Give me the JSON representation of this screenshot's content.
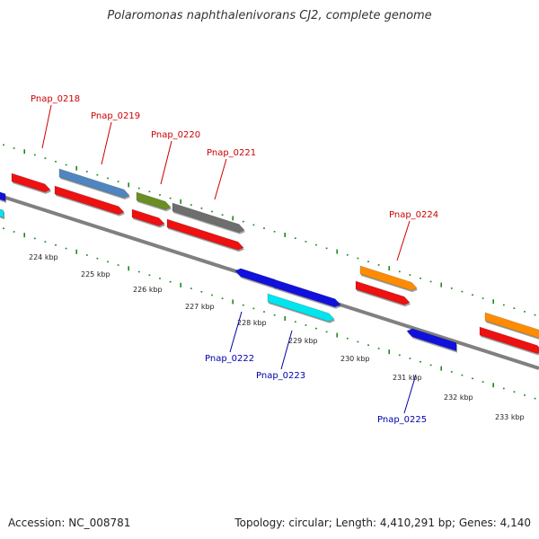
{
  "title": "Polaromonas naphthalenivorans CJ2, complete genome",
  "footer": {
    "accession": "Accession: NC_008781",
    "topology": "Topology: circular; Length: 4,410,291 bp; Genes: 4,140"
  },
  "colors": {
    "backbone": "#808080",
    "tick": "#1a8a1a",
    "forward_label": "#cc0000",
    "reverse_label": "#0000aa",
    "cds_red": "#ee1111",
    "steelblue": "#4f86c0",
    "olive": "#6b8e23",
    "gray": "#6e6e6e",
    "orange": "#ff8c00",
    "blue": "#1111dd",
    "cyan": "#00e5ee"
  },
  "kbp_labels": [
    "224 kbp",
    "225 kbp",
    "226 kbp",
    "227 kbp",
    "228 kbp",
    "229 kbp",
    "230 kbp",
    "231 kbp",
    "232 kbp",
    "233 kbp"
  ],
  "gene_labels": [
    {
      "text": "Pnap_0218",
      "strand": "forward"
    },
    {
      "text": "Pnap_0219",
      "strand": "forward"
    },
    {
      "text": "Pnap_0220",
      "strand": "forward"
    },
    {
      "text": "Pnap_0221",
      "strand": "forward"
    },
    {
      "text": "Pnap_0224",
      "strand": "forward"
    },
    {
      "text": "Pnap_0222",
      "strand": "reverse"
    },
    {
      "text": "Pnap_0223",
      "strand": "reverse"
    },
    {
      "text": "Pnap_0225",
      "strand": "reverse"
    }
  ]
}
